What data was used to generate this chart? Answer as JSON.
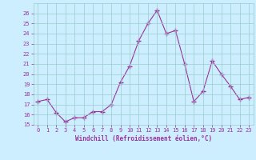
{
  "x": [
    0,
    1,
    2,
    3,
    4,
    5,
    6,
    7,
    8,
    9,
    10,
    11,
    12,
    13,
    14,
    15,
    16,
    17,
    18,
    19,
    20,
    21,
    22,
    23
  ],
  "y": [
    17.3,
    17.5,
    16.2,
    15.3,
    15.7,
    15.7,
    16.3,
    16.3,
    17.0,
    19.2,
    20.8,
    23.3,
    25.0,
    26.3,
    24.0,
    24.3,
    21.0,
    17.3,
    18.3,
    21.3,
    20.0,
    18.8,
    17.5,
    17.7
  ],
  "line_color": "#993399",
  "marker": "D",
  "marker_size": 2,
  "bg_color": "#cceeff",
  "grid_color": "#99cccc",
  "xlabel": "Windchill (Refroidissement éolien,°C)",
  "xlabel_color": "#993399",
  "tick_color": "#993399",
  "ylim": [
    15,
    27
  ],
  "xlim": [
    -0.5,
    23.5
  ],
  "yticks": [
    15,
    16,
    17,
    18,
    19,
    20,
    21,
    22,
    23,
    24,
    25,
    26
  ],
  "xticks": [
    0,
    1,
    2,
    3,
    4,
    5,
    6,
    7,
    8,
    9,
    10,
    11,
    12,
    13,
    14,
    15,
    16,
    17,
    18,
    19,
    20,
    21,
    22,
    23
  ],
  "figsize": [
    3.2,
    2.0
  ],
  "dpi": 100
}
